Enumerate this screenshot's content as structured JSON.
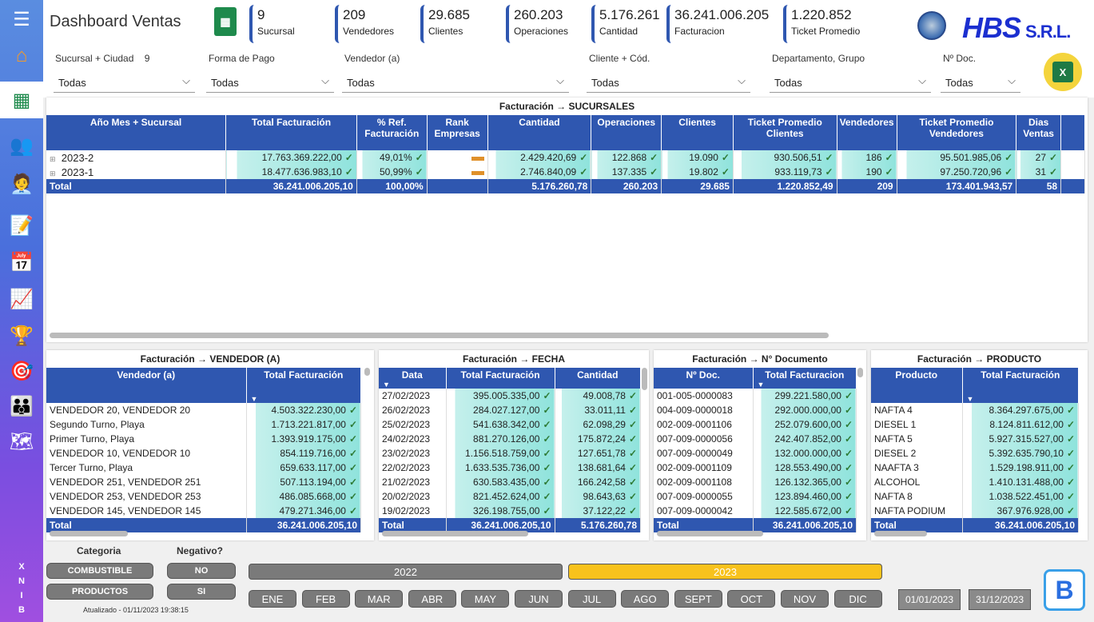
{
  "app": {
    "title": "Dashboard Ventas",
    "brand": "HBS",
    "brand_suffix": "S.R.L.",
    "updated": "Atualizado - 01/11/2023 19:38:15",
    "side_brand": [
      "B",
      "I",
      "N",
      "X"
    ]
  },
  "kpis": [
    {
      "value": "9",
      "label": "Sucursal"
    },
    {
      "value": "209",
      "label": "Vendedores"
    },
    {
      "value": "29.685",
      "label": "Clientes"
    },
    {
      "value": "260.203",
      "label": "Operaciones"
    },
    {
      "value": "5.176.261",
      "label": "Cantidad"
    },
    {
      "value": "36.241.006.205",
      "label": "Facturacion"
    },
    {
      "value": "1.220.852",
      "label": "Ticket Promedio"
    }
  ],
  "filters": [
    {
      "label": "Sucursal + Ciudad",
      "count": "9",
      "value": "Todas"
    },
    {
      "label": "Forma de Pago",
      "value": "Todas"
    },
    {
      "label": "Vendedor (a)",
      "value": "Todas"
    },
    {
      "label": "Cliente + Cód.",
      "value": "Todas"
    },
    {
      "label": "Departamento, Grupo",
      "value": "Todas"
    },
    {
      "label": "Nº Doc.",
      "value": "Todas"
    }
  ],
  "sucursales": {
    "title": "Facturación → SUCURSALES",
    "headers": [
      "Año Mes + Sucursal",
      "Total Facturación",
      "% Ref. Facturación",
      "Rank Empresas",
      "Cantidad",
      "Operaciones",
      "Clientes",
      "Ticket Promedio Clientes",
      "Vendedores",
      "Ticket Promedio Vendedores",
      "Dias Ventas"
    ],
    "rows": [
      [
        "2023-2",
        "17.763.369.222,00",
        "49,01%",
        "",
        "2.429.420,69",
        "122.868",
        "19.090",
        "930.506,51",
        "186",
        "95.501.985,06",
        "27"
      ],
      [
        "2023-1",
        "18.477.636.983,10",
        "50,99%",
        "",
        "2.746.840,09",
        "137.335",
        "19.802",
        "933.119,73",
        "190",
        "97.250.720,96",
        "31"
      ]
    ],
    "total": [
      "Total",
      "36.241.006.205,10",
      "100,00%",
      "",
      "5.176.260,78",
      "260.203",
      "29.685",
      "1.220.852,49",
      "209",
      "173.401.943,57",
      "58"
    ]
  },
  "vendedor": {
    "title": "Facturación → VENDEDOR (A)",
    "headers": [
      "Vendedor (a)",
      "Total Facturación"
    ],
    "rows": [
      [
        "VENDEDOR 20, VENDEDOR 20",
        "4.503.322.230,00"
      ],
      [
        "Segundo Turno, Playa",
        "1.713.221.817,00"
      ],
      [
        "Primer Turno, Playa",
        "1.393.919.175,00"
      ],
      [
        "VENDEDOR 10, VENDEDOR 10",
        "854.119.716,00"
      ],
      [
        "Tercer Turno, Playa",
        "659.633.117,00"
      ],
      [
        "VENDEDOR 251, VENDEDOR 251",
        "507.113.194,00"
      ],
      [
        "VENDEDOR 253, VENDEDOR 253",
        "486.085.668,00"
      ],
      [
        "VENDEDOR 145, VENDEDOR 145",
        "479.271.346,00"
      ]
    ],
    "total": [
      "Total",
      "36.241.006.205,10"
    ]
  },
  "fecha": {
    "title": "Facturación → FECHA",
    "headers": [
      "Data",
      "Total Facturación",
      "Cantidad"
    ],
    "rows": [
      [
        "27/02/2023",
        "395.005.335,00",
        "49.008,78"
      ],
      [
        "26/02/2023",
        "284.027.127,00",
        "33.011,11"
      ],
      [
        "25/02/2023",
        "541.638.342,00",
        "62.098,29"
      ],
      [
        "24/02/2023",
        "881.270.126,00",
        "175.872,24"
      ],
      [
        "23/02/2023",
        "1.156.518.759,00",
        "127.651,78"
      ],
      [
        "22/02/2023",
        "1.633.535.736,00",
        "138.681,64"
      ],
      [
        "21/02/2023",
        "630.583.435,00",
        "166.242,58"
      ],
      [
        "20/02/2023",
        "821.452.624,00",
        "98.643,63"
      ],
      [
        "19/02/2023",
        "326.198.755,00",
        "37.122,22"
      ]
    ],
    "total": [
      "Total",
      "36.241.006.205,10",
      "5.176.260,78"
    ]
  },
  "documento": {
    "title": "Facturación → N° Documento",
    "headers": [
      "Nº Doc.",
      "Total Facturacion"
    ],
    "rows": [
      [
        "001-005-0000083",
        "299.221.580,00"
      ],
      [
        "004-009-0000018",
        "292.000.000,00"
      ],
      [
        "002-009-0001106",
        "252.079.600,00"
      ],
      [
        "007-009-0000056",
        "242.407.852,00"
      ],
      [
        "007-009-0000049",
        "132.000.000,00"
      ],
      [
        "002-009-0001109",
        "128.553.490,00"
      ],
      [
        "002-009-0001108",
        "126.132.365,00"
      ],
      [
        "007-009-0000055",
        "123.894.460,00"
      ],
      [
        "007-009-0000042",
        "122.585.672,00"
      ]
    ],
    "total": [
      "Total",
      "36.241.006.205,10"
    ]
  },
  "producto": {
    "title": "Facturación → PRODUCTO",
    "headers": [
      "Producto",
      "Total Facturación"
    ],
    "rows": [
      [
        "NAFTA 4",
        "8.364.297.675,00"
      ],
      [
        "DIESEL 1",
        "8.124.811.612,00"
      ],
      [
        "NAFTA 5",
        "5.927.315.527,00"
      ],
      [
        "DIESEL 2",
        "5.392.635.790,10"
      ],
      [
        "NAAFTA 3",
        "1.529.198.911,00"
      ],
      [
        "ALCOHOL",
        "1.410.131.488,00"
      ],
      [
        "NAFTA 8",
        "1.038.522.451,00"
      ],
      [
        "NAFTA PODIUM",
        "367.976.928,00"
      ]
    ],
    "total": [
      "Total",
      "36.241.006.205,10"
    ]
  },
  "bottom": {
    "categoria_label": "Categoria",
    "negativo_label": "Negativo?",
    "categoria": [
      "COMBUSTIBLE",
      "PRODUCTOS"
    ],
    "negativo": [
      "NO",
      "SI"
    ],
    "years": [
      "2022",
      "2023"
    ],
    "months": [
      "ENE",
      "FEB",
      "MAR",
      "ABR",
      "MAY",
      "JUN",
      "JUL",
      "AGO",
      "SEPT",
      "OCT",
      "NOV",
      "DIC"
    ],
    "date_from": "01/01/2023",
    "date_to": "31/12/2023"
  }
}
